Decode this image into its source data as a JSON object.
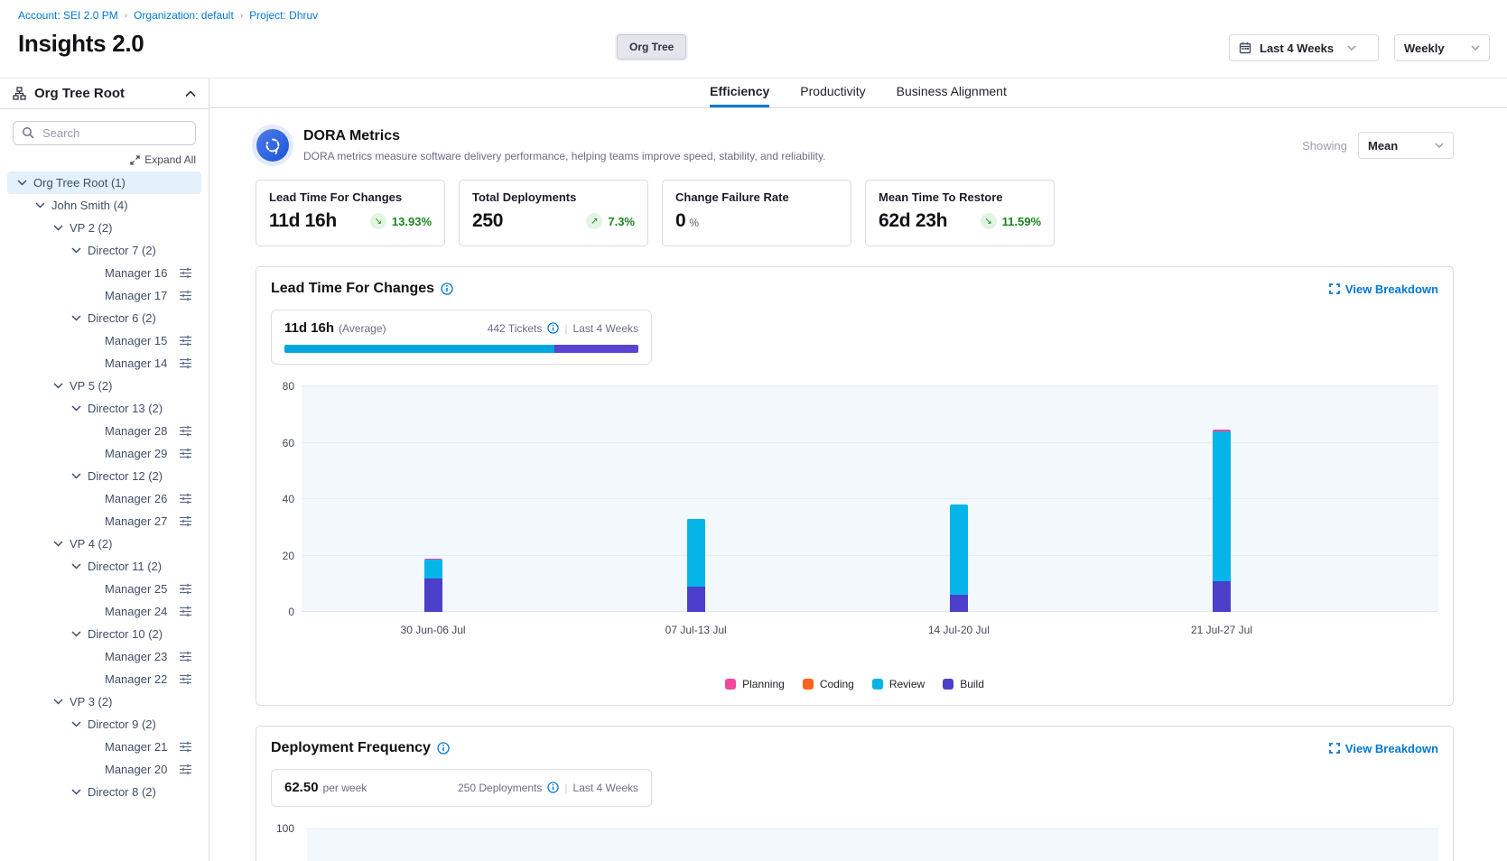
{
  "breadcrumb": {
    "items": [
      "Account: SEI 2.0 PM",
      "Organization: default",
      "Project: Dhruv"
    ]
  },
  "header": {
    "title": "Insights 2.0",
    "org_tree_button": "Org Tree",
    "date_range": "Last 4 Weeks",
    "granularity": "Weekly"
  },
  "sidebar": {
    "title": "Org Tree Root",
    "search_placeholder": "Search",
    "expand_all": "Expand All",
    "tree": [
      {
        "label": "Org Tree Root (1)",
        "level": 0,
        "expanded": true,
        "selected": true
      },
      {
        "label": "John Smith (4)",
        "level": 1,
        "expanded": true
      },
      {
        "label": "VP 2 (2)",
        "level": 2,
        "expanded": true
      },
      {
        "label": "Director 7 (2)",
        "level": 3,
        "expanded": true
      },
      {
        "label": "Manager 16",
        "level": 4,
        "leaf": true
      },
      {
        "label": "Manager 17",
        "level": 4,
        "leaf": true
      },
      {
        "label": "Director 6 (2)",
        "level": 3,
        "expanded": true
      },
      {
        "label": "Manager 15",
        "level": 4,
        "leaf": true
      },
      {
        "label": "Manager 14",
        "level": 4,
        "leaf": true
      },
      {
        "label": "VP 5 (2)",
        "level": 2,
        "expanded": true
      },
      {
        "label": "Director 13 (2)",
        "level": 3,
        "expanded": true
      },
      {
        "label": "Manager 28",
        "level": 4,
        "leaf": true
      },
      {
        "label": "Manager 29",
        "level": 4,
        "leaf": true
      },
      {
        "label": "Director 12 (2)",
        "level": 3,
        "expanded": true
      },
      {
        "label": "Manager 26",
        "level": 4,
        "leaf": true
      },
      {
        "label": "Manager 27",
        "level": 4,
        "leaf": true
      },
      {
        "label": "VP 4 (2)",
        "level": 2,
        "expanded": true
      },
      {
        "label": "Director 11 (2)",
        "level": 3,
        "expanded": true
      },
      {
        "label": "Manager 25",
        "level": 4,
        "leaf": true
      },
      {
        "label": "Manager 24",
        "level": 4,
        "leaf": true
      },
      {
        "label": "Director 10 (2)",
        "level": 3,
        "expanded": true
      },
      {
        "label": "Manager 23",
        "level": 4,
        "leaf": true
      },
      {
        "label": "Manager 22",
        "level": 4,
        "leaf": true
      },
      {
        "label": "VP 3 (2)",
        "level": 2,
        "expanded": true
      },
      {
        "label": "Director 9 (2)",
        "level": 3,
        "expanded": true
      },
      {
        "label": "Manager 21",
        "level": 4,
        "leaf": true
      },
      {
        "label": "Manager 20",
        "level": 4,
        "leaf": true
      },
      {
        "label": "Director 8 (2)",
        "level": 3,
        "expanded": true
      }
    ]
  },
  "tabs": [
    {
      "label": "Efficiency",
      "active": true
    },
    {
      "label": "Productivity",
      "active": false
    },
    {
      "label": "Business Alignment",
      "active": false
    }
  ],
  "dora": {
    "title": "DORA Metrics",
    "description": "DORA metrics measure software delivery performance, helping teams improve speed, stability, and reliability.",
    "showing_label": "Showing",
    "showing_value": "Mean",
    "cards": [
      {
        "label": "Lead Time For Changes",
        "value": "11d 16h",
        "delta": "13.93%",
        "trend": "down"
      },
      {
        "label": "Total Deployments",
        "value": "250",
        "delta": "7.3%",
        "trend": "up"
      },
      {
        "label": "Change Failure Rate",
        "value": "0",
        "unit": "%"
      },
      {
        "label": "Mean Time To Restore",
        "value": "62d 23h",
        "delta": "11.59%",
        "trend": "down"
      }
    ]
  },
  "lead_time_section": {
    "title": "Lead Time For Changes",
    "view_breakdown": "View Breakdown",
    "summary": {
      "value": "11d 16h",
      "qualifier": "(Average)",
      "meta_count": "442 Tickets",
      "meta_divider": "|",
      "meta_range": "Last 4 Weeks",
      "bar_segments": [
        {
          "name": "review-share",
          "pct": 76.4,
          "color": "#01a6e1"
        },
        {
          "name": "build-share",
          "pct": 23.6,
          "color": "#5a44d4"
        }
      ]
    }
  },
  "deployment_section": {
    "title": "Deployment Frequency",
    "view_breakdown": "View Breakdown",
    "summary": {
      "value": "62.50",
      "qualifier": "per week",
      "meta_count": "250 Deployments",
      "meta_divider": "|",
      "meta_range": "Last 4 Weeks"
    },
    "y_axis_top_label": "100"
  },
  "chart_data": [
    {
      "type": "bar",
      "stacked": true,
      "title": "Lead Time For Changes",
      "categories": [
        "30 Jun-06 Jul",
        "07 Jul-13 Jul",
        "14 Jul-20 Jul",
        "21 Jul-27 Jul"
      ],
      "series": [
        {
          "name": "Planning",
          "color": "#f2479c",
          "values": [
            0.5,
            0,
            0,
            0.6
          ]
        },
        {
          "name": "Coding",
          "color": "#f8641f",
          "values": [
            0,
            0,
            0,
            0
          ]
        },
        {
          "name": "Review",
          "color": "#06b5e8",
          "values": [
            6.5,
            24,
            32,
            53
          ]
        },
        {
          "name": "Build",
          "color": "#4c40ca",
          "values": [
            12,
            9,
            6,
            11
          ]
        }
      ],
      "stack_order_bottom_to_top": [
        "Build",
        "Review",
        "Coding",
        "Planning"
      ],
      "ylim": [
        0,
        80
      ],
      "yticks": [
        0,
        20,
        40,
        60,
        80
      ],
      "grid": true,
      "legend_position": "bottom"
    },
    {
      "type": "bar",
      "title": "Deployment Frequency",
      "note": "chart cut off at bottom of viewport; only top axis tick visible",
      "yticks_visible": [
        100
      ],
      "categories": [],
      "values": []
    }
  ],
  "colors": {
    "accent_blue": "#0278d5",
    "delta_green": "#1b841d",
    "delta_green_bg": "#e2f5e2",
    "plot_bg": "#f3f8fc",
    "selected_row_bg": "#e3f1fc"
  }
}
